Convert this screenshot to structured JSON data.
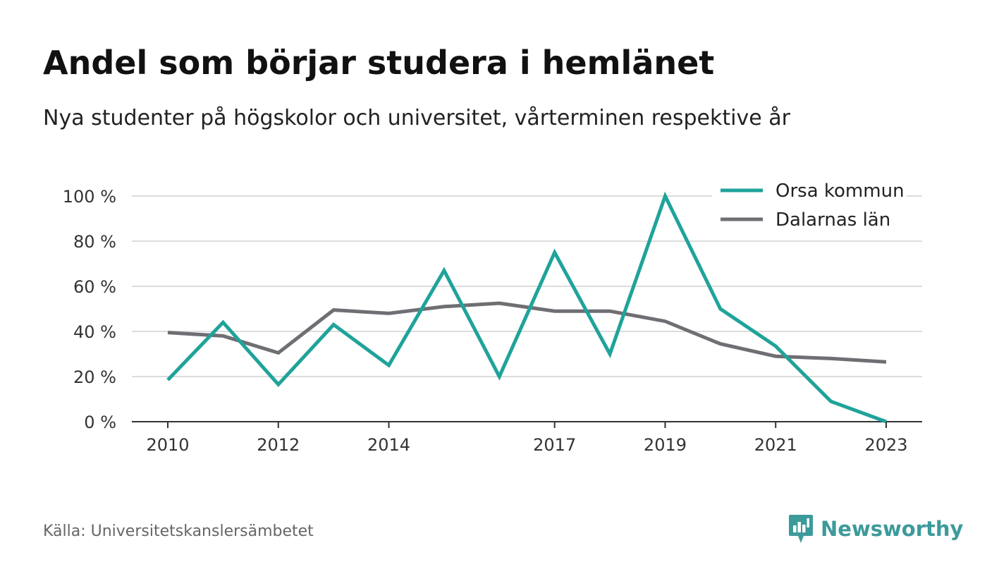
{
  "header": {
    "title": "Andel som börjar studera i hemlänet",
    "subtitle": "Nya studenter på högskolor och universitet, vårterminen respektive år"
  },
  "footer": {
    "source": "Källa: Universitetskanslersämbetet",
    "brand": "Newsworthy",
    "brand_icon": "bar-chart-speech-icon",
    "brand_color": "#3d9a9b"
  },
  "chart_data": {
    "type": "line",
    "x": [
      2010,
      2011,
      2012,
      2013,
      2014,
      2015,
      2016,
      2017,
      2018,
      2019,
      2020,
      2021,
      2022,
      2023
    ],
    "x_tick_labels": [
      "2010",
      "2012",
      "2014",
      "2017",
      "2019",
      "2021",
      "2023"
    ],
    "ylim": [
      0,
      100
    ],
    "y_ticks": [
      0,
      20,
      40,
      60,
      80,
      100
    ],
    "y_tick_labels": [
      "0 %",
      "20 %",
      "40 %",
      "60 %",
      "80 %",
      "100 %"
    ],
    "grid": true,
    "legend_position": "top-right",
    "series": [
      {
        "name": "Orsa kommun",
        "color": "#1fa39a",
        "values": [
          18.5,
          44,
          16.5,
          43,
          25,
          67,
          20,
          75,
          30,
          100,
          50,
          33.5,
          9,
          0
        ]
      },
      {
        "name": "Dalarnas län",
        "color": "#6e6e73",
        "values": [
          39.5,
          38,
          30.5,
          49.5,
          48,
          51,
          52.5,
          49,
          49,
          44.5,
          34.5,
          29,
          28,
          26.5
        ]
      }
    ]
  }
}
